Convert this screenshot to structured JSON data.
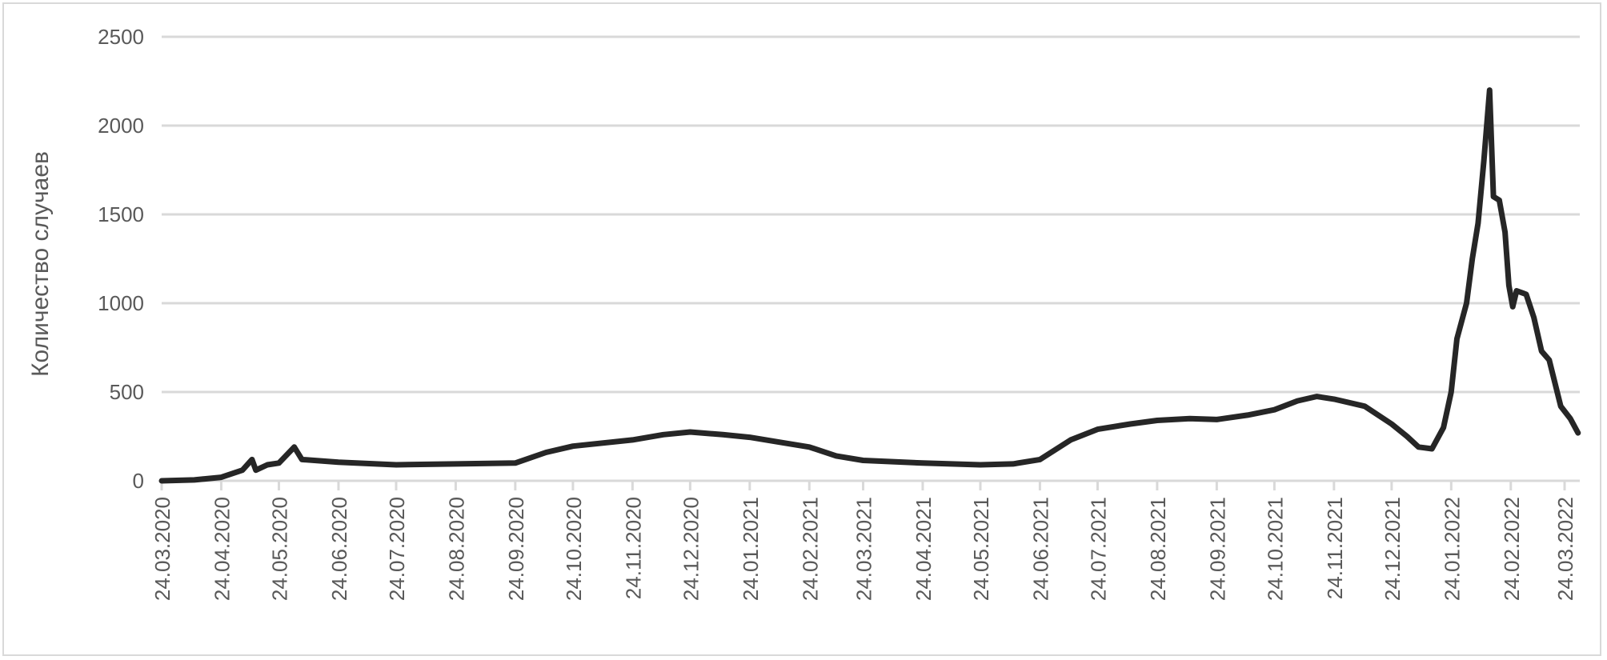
{
  "chart_data": {
    "type": "line",
    "title": "",
    "xlabel": "",
    "ylabel": "Количество случаев",
    "ylim": [
      0,
      2500
    ],
    "yticks": [
      "0",
      "500",
      "1000",
      "1500",
      "2000",
      "2500"
    ],
    "xticks": [
      "24.03.2020",
      "24.04.2020",
      "24.05.2020",
      "24.06.2020",
      "24.07.2020",
      "24.08.2020",
      "24.09.2020",
      "24.10.2020",
      "24.11.2020",
      "24.12.2020",
      "24.01.2021",
      "24.02.2021",
      "24.03.2021",
      "24.04.2021",
      "24.05.2021",
      "24.06.2021",
      "24.07.2021",
      "24.08.2021",
      "24.09.2021",
      "24.10.2021",
      "24.11.2021",
      "24.12.2021",
      "24.01.2022",
      "24.02.2022",
      "24.03.2022"
    ],
    "grid": true,
    "legend": "none",
    "line_color": "#262626",
    "grid_color": "#d9d9d9",
    "series": [
      {
        "x": [
          "2020-03-24",
          "2020-04-10",
          "2020-04-24",
          "2020-05-05",
          "2020-05-10",
          "2020-05-12",
          "2020-05-18",
          "2020-05-24",
          "2020-06-01",
          "2020-06-05",
          "2020-06-24",
          "2020-07-24",
          "2020-08-24",
          "2020-09-24",
          "2020-10-10",
          "2020-10-24",
          "2020-11-24",
          "2020-12-10",
          "2020-12-24",
          "2021-01-10",
          "2021-01-24",
          "2021-02-10",
          "2021-02-24",
          "2021-03-10",
          "2021-03-24",
          "2021-04-24",
          "2021-05-24",
          "2021-06-10",
          "2021-06-24",
          "2021-07-10",
          "2021-07-24",
          "2021-08-10",
          "2021-08-24",
          "2021-09-10",
          "2021-09-24",
          "2021-10-10",
          "2021-10-24",
          "2021-11-05",
          "2021-11-15",
          "2021-11-24",
          "2021-12-10",
          "2021-12-24",
          "2022-01-01",
          "2022-01-07",
          "2022-01-14",
          "2022-01-20",
          "2022-01-24",
          "2022-01-27",
          "2022-02-01",
          "2022-02-04",
          "2022-02-07",
          "2022-02-10",
          "2022-02-13",
          "2022-02-15",
          "2022-02-18",
          "2022-02-21",
          "2022-02-23",
          "2022-02-25",
          "2022-02-27",
          "2022-03-04",
          "2022-03-08",
          "2022-03-12",
          "2022-03-16",
          "2022-03-22",
          "2022-03-27",
          "2022-03-31"
        ],
        "y": [
          0,
          5,
          20,
          60,
          120,
          60,
          90,
          100,
          190,
          120,
          105,
          90,
          95,
          100,
          160,
          195,
          230,
          260,
          275,
          260,
          245,
          215,
          190,
          140,
          115,
          100,
          90,
          95,
          120,
          230,
          290,
          320,
          340,
          350,
          345,
          370,
          400,
          450,
          475,
          460,
          420,
          320,
          250,
          190,
          180,
          300,
          500,
          800,
          1000,
          1250,
          1450,
          1800,
          2200,
          1600,
          1580,
          1400,
          1100,
          980,
          1070,
          1050,
          920,
          730,
          680,
          420,
          350,
          270
        ]
      }
    ]
  }
}
